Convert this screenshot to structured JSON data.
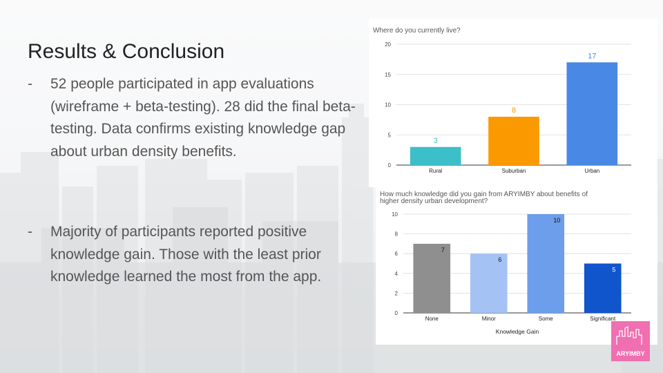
{
  "slide": {
    "title": "Results & Conclusion",
    "bullets": [
      {
        "marker": "-",
        "text": "52 people participated in app evaluations (wireframe + beta-testing). 28 did the final beta-testing. Data confirms existing knowledge gap about urban density benefits."
      },
      {
        "marker": "-",
        "text": "Majority of participants reported positive knowledge gain. Those with the least prior knowledge learned the most from the app."
      }
    ]
  },
  "logo": {
    "text": "ARYIMBY",
    "color": "#f06fb0"
  },
  "chart_data": [
    {
      "type": "bar",
      "title": "Where do you currently live?",
      "categories": [
        "Rural",
        "Suburban",
        "Urban"
      ],
      "values": [
        3,
        8,
        17
      ],
      "colors": [
        "#3cbfc9",
        "#fb9a00",
        "#4a88e6"
      ],
      "label_colors": [
        "#3cbfc9",
        "#fb9a00",
        "#4a88e6"
      ],
      "ylim": [
        0,
        20
      ],
      "yticks": [
        0,
        5,
        10,
        15,
        20
      ],
      "grid": true,
      "xlabel": "",
      "ylabel": ""
    },
    {
      "type": "bar",
      "title": "How much knowledge did you gain from ARYIMBY about benefits of higher density urban development?",
      "title_lines": [
        "How much knowledge did you gain from ARYIMBY about benefits of",
        "higher density urban development?"
      ],
      "categories": [
        "None",
        "Minor",
        "Some",
        "Significant"
      ],
      "values": [
        7,
        6,
        10,
        5
      ],
      "colors": [
        "#8f8f8f",
        "#a4c2f4",
        "#6d9eeb",
        "#1155cc"
      ],
      "label_colors": [
        "#111111",
        "#111111",
        "#111111",
        "#ffffff"
      ],
      "ylim": [
        0,
        10
      ],
      "yticks": [
        0,
        2,
        4,
        6,
        8,
        10
      ],
      "grid": true,
      "xlabel": "Knowledge Gain",
      "ylabel": ""
    }
  ]
}
